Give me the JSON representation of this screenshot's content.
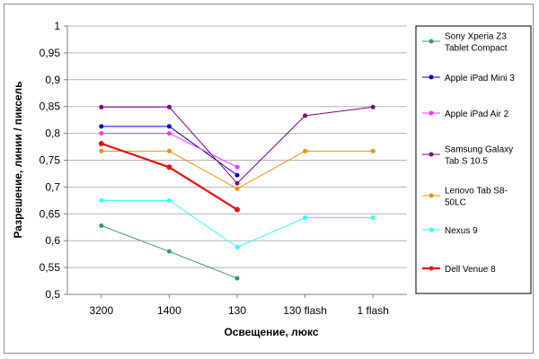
{
  "chart_data": {
    "type": "line",
    "categories": [
      "3200",
      "1400",
      "130",
      "130 flash",
      "1 flash"
    ],
    "xlabel": "Освещение, люкс",
    "ylabel": "Разрешение, линии / пиксель",
    "ylim": [
      0.5,
      1
    ],
    "yticks": [
      "0,5",
      "0,55",
      "0,6",
      "0,65",
      "0,7",
      "0,75",
      "0,8",
      "0,85",
      "0,9",
      "0,95",
      "1"
    ],
    "grid": "horizontal",
    "legend_position": "right",
    "series": [
      {
        "name": "Sony Xperia Z3 Tablet Compact",
        "legend_lines": [
          "Sony Xperia Z3",
          "Tablet Compact"
        ],
        "color": "#339966",
        "values": [
          0.628,
          0.58,
          0.53,
          null,
          null
        ]
      },
      {
        "name": "Apple iPad Mini 3",
        "legend_lines": [
          "Apple iPad Mini 3"
        ],
        "color": "#0000cc",
        "values": [
          0.813,
          0.813,
          0.722,
          null,
          null
        ]
      },
      {
        "name": "Apple iPad Air 2",
        "legend_lines": [
          "Apple iPad Air 2"
        ],
        "color": "#ff33ff",
        "values": [
          0.8,
          0.8,
          0.737,
          null,
          null
        ]
      },
      {
        "name": "Samsung Galaxy Tab S 10.5",
        "legend_lines": [
          "Samsung Galaxy",
          "Tab S 10.5"
        ],
        "color": "#800080",
        "values": [
          0.849,
          0.849,
          0.707,
          0.833,
          0.849
        ]
      },
      {
        "name": "Lenovo Tab S8-50LC",
        "legend_lines": [
          "Lenovo Tab S8-",
          "50LC"
        ],
        "color": "#ff8c00",
        "values": [
          0.767,
          0.767,
          0.697,
          0.767,
          0.767
        ]
      },
      {
        "name": "Nexus 9",
        "legend_lines": [
          "Nexus 9"
        ],
        "color": "#33ffff",
        "values": [
          0.675,
          0.675,
          0.588,
          0.643,
          0.643
        ]
      },
      {
        "name": "Dell Venue 8",
        "legend_lines": [
          "Dell Venue 8"
        ],
        "color": "#ee1111",
        "bold": true,
        "values": [
          0.781,
          0.737,
          0.658,
          null,
          null
        ]
      }
    ]
  }
}
